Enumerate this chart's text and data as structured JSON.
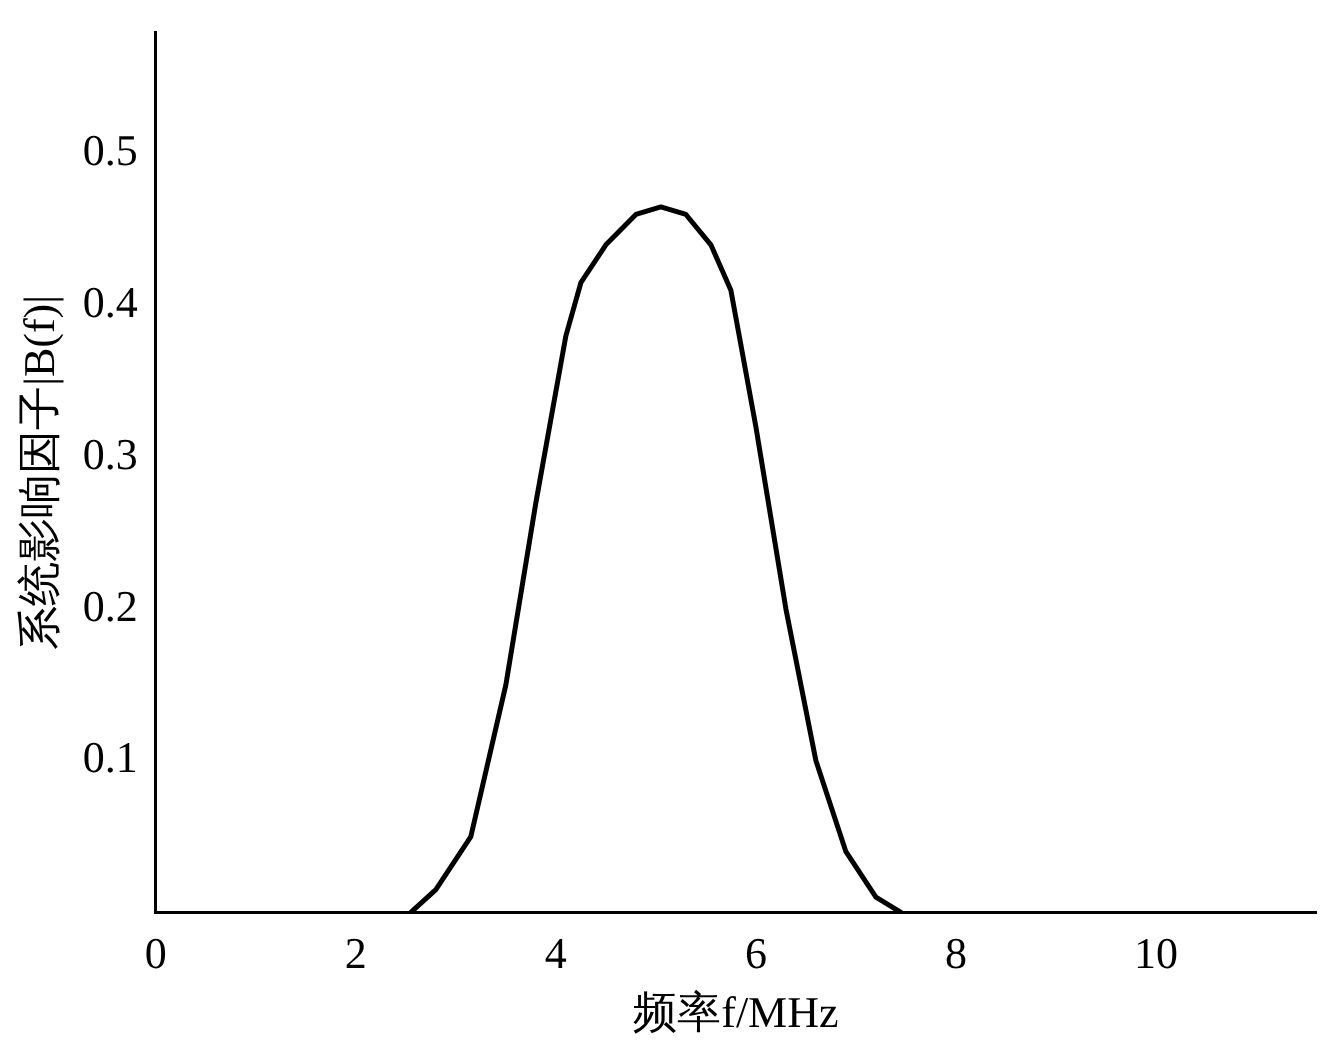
{
  "chart_data": {
    "type": "line",
    "xlabel": "频率f/MHz",
    "ylabel": "系统影响因子|B(f)|",
    "x": [
      2.55,
      2.8,
      3.15,
      3.5,
      3.8,
      4.1,
      4.25,
      4.5,
      4.8,
      5.05,
      5.3,
      5.55,
      5.75,
      6.0,
      6.3,
      6.6,
      6.9,
      7.2,
      7.45
    ],
    "series": [
      {
        "color": "#000000",
        "values": [
          0,
          0.015,
          0.05,
          0.15,
          0.27,
          0.38,
          0.415,
          0.44,
          0.46,
          0.465,
          0.46,
          0.44,
          0.41,
          0.32,
          0.2,
          0.1,
          0.04,
          0.01,
          0
        ]
      }
    ],
    "xlim": [
      0,
      11.6
    ],
    "xticks": [
      0,
      2,
      4,
      6,
      8,
      10
    ],
    "ylim": [
      0,
      0.58
    ],
    "yticks": [
      0.1,
      0.2,
      0.3,
      0.4,
      0.5
    ],
    "grid": false,
    "legend": false,
    "marker": "none",
    "line_style": "solid"
  }
}
